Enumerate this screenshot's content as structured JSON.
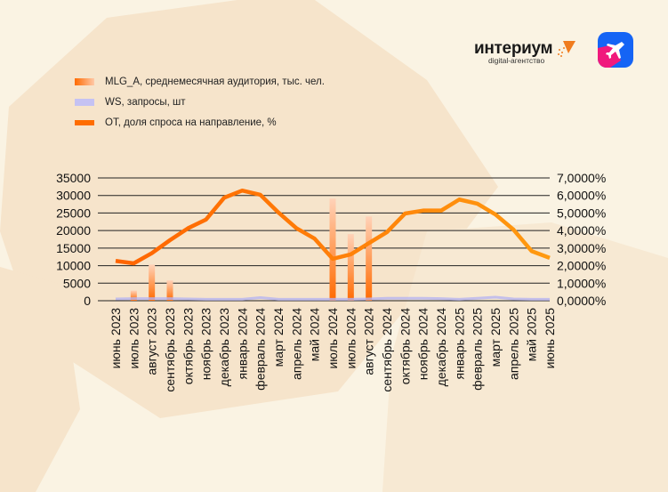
{
  "brand": {
    "name": "интериум",
    "tagline": "digital-агентство",
    "accent": "#f07c1e"
  },
  "app_icon": "airplane-icon",
  "chart_data": {
    "type": "bar+line",
    "categories": [
      "июнь 2023",
      "июль 2023",
      "август 2023",
      "сентябрь 2023",
      "октябрь 2023",
      "ноябрь 2023",
      "декабрь 2023",
      "январь 2024",
      "февраль 2024",
      "март 2024",
      "апрель 2024",
      "май 2024",
      "июль 2024",
      "июль 2024",
      "август 2024",
      "сентябрь 2024",
      "октябрь 2024",
      "ноябрь 2024",
      "декабрь 2024",
      "январь 2025",
      "февраль 2025",
      "март 2025",
      "апрель 2025",
      "май 2025",
      "июнь 2025"
    ],
    "series": [
      {
        "name": "MLG_A, среднемесячная аудитория, тыс. чел.",
        "type": "bar",
        "axis": "left",
        "color": "#ff6a00",
        "values": [
          0,
          2900,
          10300,
          5800,
          0,
          0,
          0,
          0,
          0,
          0,
          0,
          0,
          29100,
          19000,
          24000,
          0,
          0,
          0,
          0,
          0,
          0,
          0,
          0,
          0,
          0
        ]
      },
      {
        "name": "WS, запросы, шт",
        "type": "line",
        "axis": "left",
        "color": "#b7b4f0",
        "values": [
          500,
          600,
          600,
          600,
          500,
          400,
          400,
          400,
          900,
          400,
          400,
          400,
          400,
          400,
          500,
          700,
          700,
          700,
          600,
          400,
          700,
          1000,
          500,
          400,
          400
        ]
      },
      {
        "name": "OT, доля спроса на направление, %",
        "type": "line",
        "axis": "right",
        "color": "#ff6d00",
        "values": [
          2.27,
          2.13,
          2.71,
          3.45,
          4.13,
          4.63,
          5.87,
          6.28,
          6.04,
          5.03,
          4.13,
          3.54,
          2.39,
          2.64,
          3.28,
          3.91,
          4.97,
          5.14,
          5.14,
          5.77,
          5.53,
          4.92,
          4.05,
          2.83,
          2.44
        ]
      }
    ],
    "y_left": {
      "range": [
        0,
        35000
      ],
      "ticks": [
        "0",
        "5000",
        "10000",
        "15000",
        "20000",
        "25000",
        "30000",
        "35000"
      ]
    },
    "y_right": {
      "range": [
        0,
        7
      ],
      "ticks": [
        "0,0000%",
        "1,0000%",
        "2,0000%",
        "3,0000%",
        "4,0000%",
        "5,0000%",
        "6,0000%",
        "7,0000%"
      ]
    },
    "grid": true,
    "legend": "top-left"
  }
}
